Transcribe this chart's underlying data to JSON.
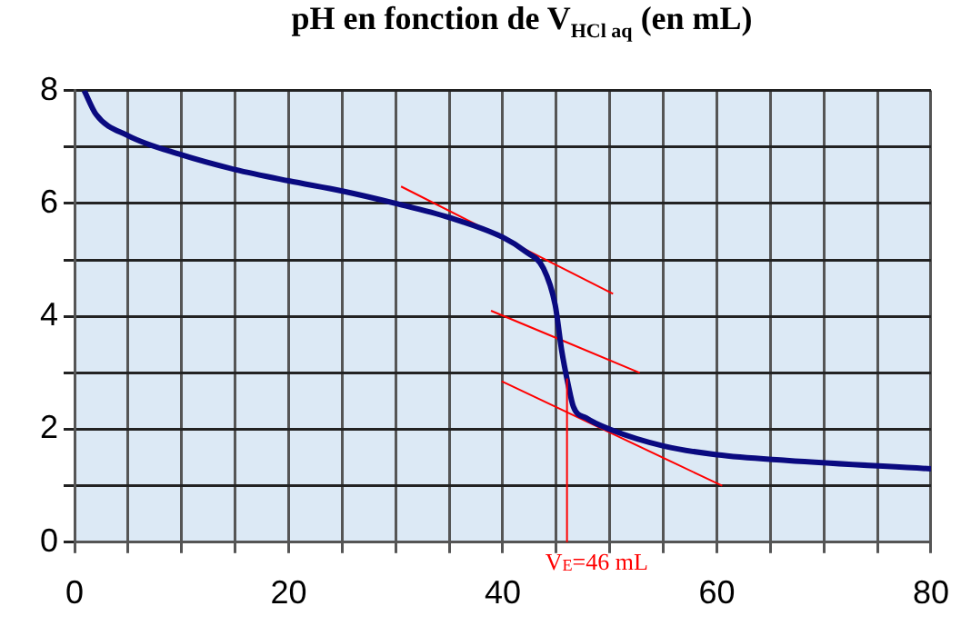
{
  "chart_data": {
    "type": "line",
    "title": "pH en fonction de V$_{HCl aq}$ (en mL)",
    "series": [
      {
        "color": "#0a0a80",
        "x": [
          0.9,
          2,
          5,
          10,
          15,
          20,
          25,
          30,
          35,
          40,
          42.1,
          43.8,
          44.9,
          45.5,
          46.1,
          46.6,
          47.8,
          50,
          55.1,
          60,
          66.5,
          80
        ],
        "values": [
          8,
          7.58,
          7.2,
          6.86,
          6.6,
          6.4,
          6.22,
          6.0,
          5.75,
          5.4,
          5.15,
          4.85,
          4.2,
          3.4,
          2.8,
          2.4,
          2.2,
          2.0,
          1.7,
          1.55,
          1.45,
          1.3
        ]
      },
      {
        "color": "#ff0000",
        "x": [
          30.5,
          50.3
        ],
        "values": [
          6.3,
          4.4
        ]
      },
      {
        "color": "#ff0000",
        "x": [
          38.9,
          52.8
        ],
        "values": [
          4.1,
          3.0
        ]
      },
      {
        "color": "#ff0000",
        "x": [
          39.9,
          60.5
        ],
        "values": [
          2.85,
          1.0
        ]
      }
    ],
    "ref_lines": [
      {
        "axis": "x",
        "value": 46,
        "label": "V$_{E}$=46 mL",
        "color": "#ff0000"
      }
    ],
    "xlim": [
      0,
      80
    ],
    "xticks": [
      0,
      {
        "value": 5,
        "label": null
      },
      {
        "value": 10,
        "label": null
      },
      {
        "value": 15,
        "label": null
      },
      20,
      {
        "value": 25,
        "label": null
      },
      {
        "value": 30,
        "label": null
      },
      {
        "value": 35,
        "label": null
      },
      40,
      {
        "value": 45,
        "label": null
      },
      {
        "value": 50,
        "label": null
      },
      {
        "value": 55,
        "label": null
      },
      60,
      {
        "value": 65,
        "label": null
      },
      {
        "value": 70,
        "label": null
      },
      {
        "value": 75,
        "label": null
      },
      80
    ],
    "ylim": [
      0,
      8
    ],
    "yticks": [
      0,
      {
        "value": 1,
        "label": null
      },
      2,
      {
        "value": 3,
        "label": null
      },
      4,
      {
        "value": 5,
        "label": null
      },
      6,
      {
        "value": 7,
        "label": null
      },
      8
    ],
    "grid": true,
    "legend": false,
    "marker": "none",
    "line_style": "solid"
  }
}
